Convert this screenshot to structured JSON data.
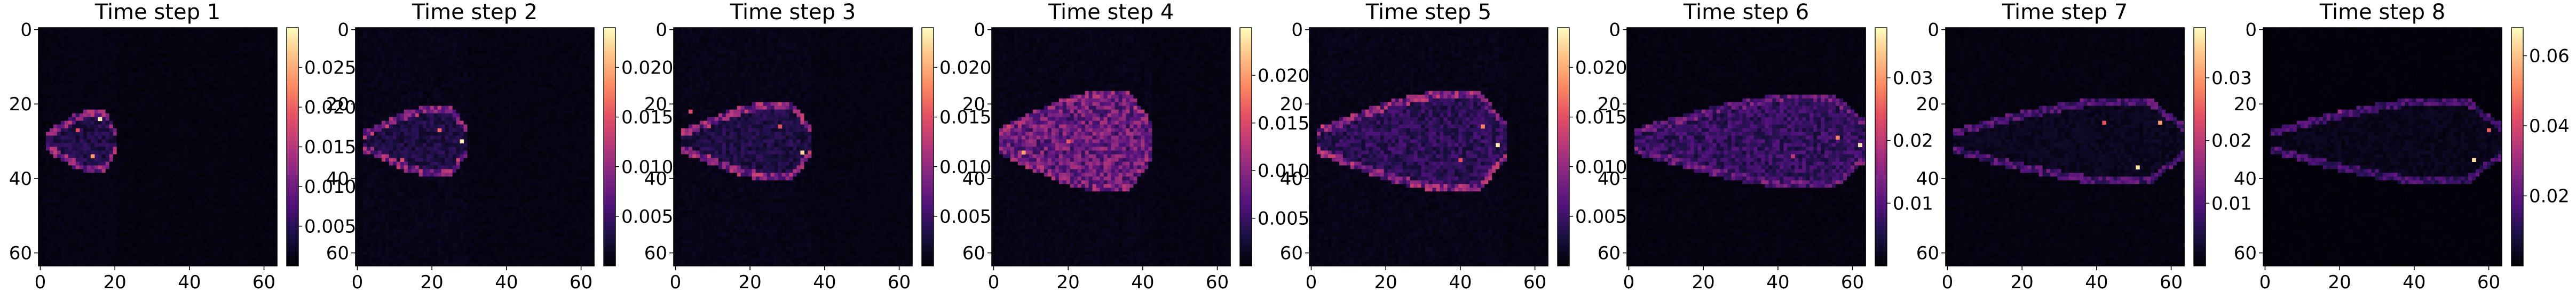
{
  "figure": {
    "colormap": "magma"
  },
  "chart_data": [
    {
      "type": "heatmap",
      "title": "Time step 1",
      "x_ticks": [
        "0",
        "20",
        "40",
        "60"
      ],
      "y_ticks": [
        "0",
        "20",
        "40",
        "60"
      ],
      "xlim": [
        0,
        64
      ],
      "ylim": [
        64,
        0
      ],
      "colorbar": {
        "ticks": [
          "0.005",
          "0.010",
          "0.015",
          "0.020",
          "0.025"
        ],
        "range": [
          0,
          0.03
        ]
      },
      "pattern": {
        "center_row": 30,
        "x_start": 2,
        "x_end": 20,
        "max_halfwidth": 8,
        "edge_intensity": 0.012,
        "interior": 0.004,
        "hotspots": [
          [
            16,
            24,
            0.029
          ],
          [
            14,
            34,
            0.024
          ],
          [
            10,
            27,
            0.018
          ]
        ]
      }
    },
    {
      "type": "heatmap",
      "title": "Time step 2",
      "x_ticks": [
        "0",
        "20",
        "40",
        "60"
      ],
      "y_ticks": [
        "0",
        "20",
        "40",
        "60"
      ],
      "xlim": [
        0,
        64
      ],
      "ylim": [
        64,
        0
      ],
      "colorbar": {
        "ticks": [
          "0.005",
          "0.010",
          "0.015",
          "0.020"
        ],
        "range": [
          0,
          0.024
        ]
      },
      "pattern": {
        "center_row": 30,
        "x_start": 2,
        "x_end": 29,
        "max_halfwidth": 9,
        "edge_intensity": 0.01,
        "interior": 0.003,
        "hotspots": [
          [
            28,
            30,
            0.023
          ],
          [
            22,
            27,
            0.016
          ],
          [
            12,
            35,
            0.014
          ]
        ]
      }
    },
    {
      "type": "heatmap",
      "title": "Time step 3",
      "x_ticks": [
        "0",
        "20",
        "40",
        "60"
      ],
      "y_ticks": [
        "0",
        "20",
        "40",
        "60"
      ],
      "xlim": [
        0,
        64
      ],
      "ylim": [
        64,
        0
      ],
      "colorbar": {
        "ticks": [
          "0.005",
          "0.010",
          "0.015",
          "0.020"
        ],
        "range": [
          0,
          0.024
        ]
      },
      "pattern": {
        "center_row": 30,
        "x_start": 2,
        "x_end": 36,
        "max_halfwidth": 10,
        "edge_intensity": 0.01,
        "interior": 0.003,
        "hotspots": [
          [
            34,
            33,
            0.022
          ],
          [
            28,
            26,
            0.015
          ],
          [
            4,
            22,
            0.014
          ]
        ]
      }
    },
    {
      "type": "heatmap",
      "title": "Time step 4",
      "x_ticks": [
        "0",
        "20",
        "40",
        "60"
      ],
      "y_ticks": [
        "0",
        "20",
        "40",
        "60"
      ],
      "xlim": [
        0,
        64
      ],
      "ylim": [
        64,
        0
      ],
      "colorbar": {
        "ticks": [
          "0.005",
          "0.010",
          "0.015",
          "0.020"
        ],
        "range": [
          0,
          0.025
        ]
      },
      "pattern": {
        "center_row": 30,
        "x_start": 2,
        "x_end": 42,
        "max_halfwidth": 13,
        "edge_intensity": 0.01,
        "interior": 0.008,
        "hotspots": [
          [
            8,
            33,
            0.02
          ],
          [
            20,
            30,
            0.016
          ],
          [
            4,
            26,
            0.014
          ]
        ]
      }
    },
    {
      "type": "heatmap",
      "title": "Time step 5",
      "x_ticks": [
        "0",
        "20",
        "40",
        "60"
      ],
      "y_ticks": [
        "0",
        "20",
        "40",
        "60"
      ],
      "xlim": [
        0,
        64
      ],
      "ylim": [
        64,
        0
      ],
      "colorbar": {
        "ticks": [
          "0.005",
          "0.010",
          "0.015",
          "0.020"
        ],
        "range": [
          0,
          0.024
        ]
      },
      "pattern": {
        "center_row": 30,
        "x_start": 2,
        "x_end": 52,
        "max_halfwidth": 13,
        "edge_intensity": 0.01,
        "interior": 0.004,
        "hotspots": [
          [
            50,
            31,
            0.023
          ],
          [
            46,
            26,
            0.018
          ],
          [
            40,
            35,
            0.015
          ]
        ]
      }
    },
    {
      "type": "heatmap",
      "title": "Time step 6",
      "x_ticks": [
        "0",
        "20",
        "40",
        "60"
      ],
      "y_ticks": [
        "0",
        "20",
        "40",
        "60"
      ],
      "xlim": [
        0,
        64
      ],
      "ylim": [
        64,
        0
      ],
      "colorbar": {
        "ticks": [
          "0.01",
          "0.02",
          "0.03"
        ],
        "range": [
          0,
          0.038
        ]
      },
      "pattern": {
        "center_row": 30,
        "x_start": 2,
        "x_end": 64,
        "max_halfwidth": 12,
        "edge_intensity": 0.012,
        "interior": 0.007,
        "hotspots": [
          [
            62,
            31,
            0.036
          ],
          [
            56,
            29,
            0.028
          ],
          [
            44,
            34,
            0.02
          ]
        ]
      }
    },
    {
      "type": "heatmap",
      "title": "Time step 7",
      "x_ticks": [
        "0",
        "20",
        "40",
        "60"
      ],
      "y_ticks": [
        "0",
        "20",
        "40",
        "60"
      ],
      "xlim": [
        0,
        64
      ],
      "ylim": [
        64,
        0
      ],
      "colorbar": {
        "ticks": [
          "0.01",
          "0.02",
          "0.03"
        ],
        "range": [
          0,
          0.038
        ]
      },
      "pattern": {
        "center_row": 30,
        "x_start": 2,
        "x_end": 63,
        "max_halfwidth": 11,
        "edge_intensity": 0.01,
        "interior": 0.002,
        "hotspots": [
          [
            51,
            37,
            0.036
          ],
          [
            57,
            25,
            0.03
          ],
          [
            42,
            25,
            0.024
          ]
        ]
      }
    },
    {
      "type": "heatmap",
      "title": "Time step 8",
      "x_ticks": [
        "0",
        "20",
        "40",
        "60"
      ],
      "y_ticks": [
        "0",
        "20",
        "40",
        "60"
      ],
      "xlim": [
        0,
        64
      ],
      "ylim": [
        64,
        0
      ],
      "colorbar": {
        "ticks": [
          "0.02",
          "0.04",
          "0.06"
        ],
        "range": [
          0,
          0.068
        ]
      },
      "pattern": {
        "center_row": 30,
        "x_start": 2,
        "x_end": 63,
        "max_halfwidth": 11,
        "edge_intensity": 0.016,
        "interior": 0.003,
        "hotspots": [
          [
            56,
            35,
            0.064
          ],
          [
            60,
            27,
            0.045
          ],
          [
            20,
            22,
            0.03
          ]
        ]
      }
    }
  ]
}
